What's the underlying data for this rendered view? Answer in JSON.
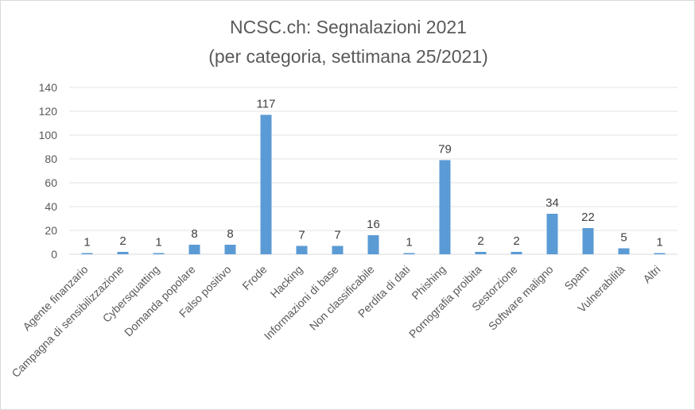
{
  "chart_data": {
    "type": "bar",
    "title": "NCSC.ch: Segnalazioni 2021",
    "subtitle": "(per categoria, settimana 25/2021)",
    "categories": [
      "Agente finanzario",
      "Campagna di sensibilizzazione",
      "Cybersquatting",
      "Domanda popolare",
      "Falso positivo",
      "Frode",
      "Hacking",
      "Informazioni di base",
      "Non classificabile",
      "Perdita di dati",
      "Phishing",
      "Pornografia proibita",
      "Sestorzione",
      "Software maligno",
      "Spam",
      "Vulnerabilità",
      "Altri"
    ],
    "values": [
      1,
      2,
      1,
      8,
      8,
      117,
      7,
      7,
      16,
      1,
      79,
      2,
      2,
      34,
      22,
      5,
      1
    ],
    "ylim": [
      0,
      140
    ],
    "yticks": [
      0,
      20,
      40,
      60,
      80,
      100,
      120,
      140
    ],
    "xlabel": "",
    "ylabel": "",
    "grid": true,
    "bar_color": "#5b9bd5"
  }
}
